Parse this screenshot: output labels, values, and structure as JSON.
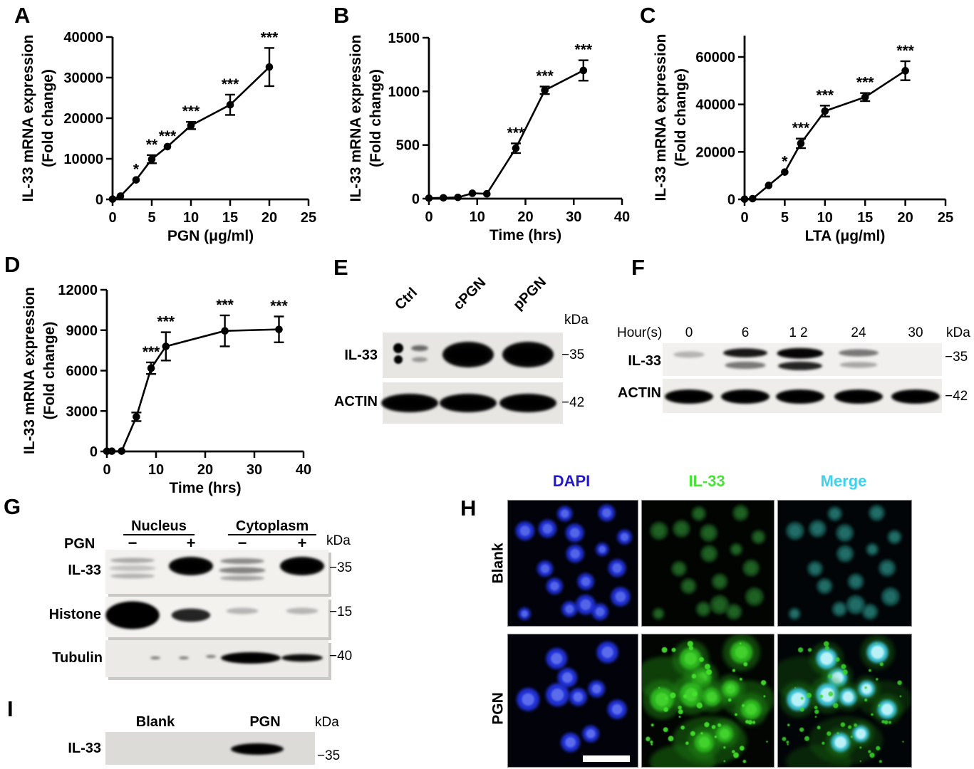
{
  "panels": {
    "a": {
      "label": "A",
      "chart_data": {
        "type": "line",
        "xlabel": "PGN (μg/ml)",
        "ylabel_lines": [
          "IL-33 mRNA expression",
          "(Fold change)"
        ],
        "xlim": [
          0,
          25
        ],
        "xticks": [
          0,
          5,
          10,
          15,
          20,
          25
        ],
        "ylim": [
          0,
          40000
        ],
        "yticks": [
          0,
          10000,
          20000,
          30000,
          40000
        ],
        "x": [
          0,
          1,
          3,
          5,
          7,
          10,
          15,
          20
        ],
        "y": [
          60,
          800,
          4800,
          9900,
          13000,
          18200,
          23300,
          32600
        ],
        "yerr": [
          0,
          0,
          400,
          1000,
          700,
          900,
          2500,
          4700
        ],
        "sig": [
          "",
          "",
          "*",
          "**",
          "***",
          "***",
          "***",
          "***"
        ]
      }
    },
    "b": {
      "label": "B",
      "chart_data": {
        "type": "line",
        "xlabel": "Time (hrs)",
        "ylabel_lines": [
          "IL-33 mRNA expression",
          "(Fold change)"
        ],
        "xlim": [
          0,
          40
        ],
        "xticks": [
          0,
          10,
          20,
          30,
          40
        ],
        "ylim": [
          0,
          1500
        ],
        "yticks": [
          0,
          500,
          1000,
          1500
        ],
        "x": [
          0,
          3,
          6,
          9,
          12,
          18,
          24,
          32
        ],
        "y": [
          5,
          8,
          12,
          50,
          45,
          470,
          1010,
          1195
        ],
        "yerr": [
          0,
          0,
          0,
          12,
          10,
          45,
          35,
          95
        ],
        "sig": [
          "",
          "",
          "",
          "",
          "",
          "***",
          "***",
          "***"
        ]
      }
    },
    "c": {
      "label": "C",
      "chart_data": {
        "type": "line",
        "xlabel": "LTA (μg/ml)",
        "ylabel_lines": [
          "IL-33 mRNA expression",
          "(Fold change)"
        ],
        "xlim": [
          0,
          25
        ],
        "xticks": [
          0,
          5,
          10,
          15,
          20,
          25
        ],
        "ylim": [
          0,
          69000
        ],
        "yticks": [
          0,
          20000,
          40000,
          60000
        ],
        "x": [
          0,
          1,
          3,
          5,
          7,
          10,
          15,
          20
        ],
        "y": [
          100,
          300,
          5900,
          11500,
          23600,
          37200,
          43100,
          54200
        ],
        "yerr": [
          0,
          0,
          500,
          900,
          2000,
          2300,
          1700,
          4000
        ],
        "sig": [
          "",
          "",
          "",
          "*",
          "***",
          "***",
          "***",
          "***"
        ]
      }
    },
    "d": {
      "label": "D",
      "chart_data": {
        "type": "line",
        "xlabel": "Time (hrs)",
        "ylabel_lines": [
          "IL-33 mRNA expression",
          "(Fold change)"
        ],
        "xlim": [
          0,
          40
        ],
        "xticks": [
          0,
          10,
          20,
          30,
          40
        ],
        "ylim": [
          0,
          12000
        ],
        "yticks": [
          0,
          3000,
          6000,
          9000,
          12000
        ],
        "x": [
          0,
          1,
          3,
          6,
          9,
          12,
          24,
          35
        ],
        "y": [
          15,
          20,
          25,
          2570,
          6180,
          7800,
          8950,
          9060
        ],
        "yerr": [
          0,
          0,
          0,
          320,
          430,
          1050,
          1150,
          960
        ],
        "sig": [
          "",
          "",
          "",
          "",
          "***",
          "***",
          "***",
          "***"
        ]
      }
    },
    "e": {
      "label": "E",
      "kda": "kDa",
      "lanes": [
        "Ctrl",
        "cPGN",
        "pPGN"
      ],
      "rows": [
        {
          "label": "IL-33",
          "marker": "−35",
          "bands": [
            "faint_dots",
            "strong",
            "strong"
          ]
        },
        {
          "label": "ACTIN",
          "marker": "−42",
          "bands": [
            "strong",
            "strong",
            "strong"
          ]
        }
      ]
    },
    "f": {
      "label": "F",
      "header": "Hour(s)",
      "kda": "kDa",
      "lanes": [
        "0",
        "6",
        "12",
        "24",
        "30"
      ],
      "rows": [
        {
          "label": "IL-33",
          "marker": "−35",
          "bands": [
            "trace",
            "double_medium",
            "double_strong",
            "double_faint",
            "none"
          ]
        },
        {
          "label": "ACTIN",
          "marker": "−42",
          "bands": [
            "strong",
            "strong",
            "strong",
            "strong",
            "strong"
          ]
        }
      ]
    },
    "g": {
      "label": "G",
      "groups": [
        "Nucleus",
        "Cytoplasm"
      ],
      "row_header": "PGN",
      "lane_signs": [
        "−",
        "+",
        "−",
        "+"
      ],
      "kda": "kDa",
      "rows": [
        {
          "label": "IL-33",
          "marker": "−35",
          "bands": [
            "smear_faint",
            "strong",
            "smear_medium",
            "strong"
          ]
        },
        {
          "label": "Histone",
          "marker": "−15",
          "bands": [
            "very_strong",
            "medium",
            "trace",
            "trace"
          ]
        },
        {
          "label": "Tubulin",
          "marker": "−40",
          "bands": [
            "speck",
            "speck",
            "strong",
            "medium_strong"
          ]
        }
      ]
    },
    "h": {
      "label": "H",
      "columns": [
        {
          "label": "DAPI",
          "color": "#2218cf"
        },
        {
          "label": "IL-33",
          "color": "#46e437"
        },
        {
          "label": "Merge",
          "color": "#3cd2ee"
        }
      ],
      "rows": [
        {
          "label": "Blank"
        },
        {
          "label": "PGN"
        }
      ]
    },
    "i": {
      "label": "I",
      "kda": "kDa",
      "lanes": [
        "Blank",
        "PGN"
      ],
      "rows": [
        {
          "label": "IL-33",
          "marker": "−35",
          "bands": [
            "none",
            "strong"
          ]
        }
      ]
    }
  }
}
